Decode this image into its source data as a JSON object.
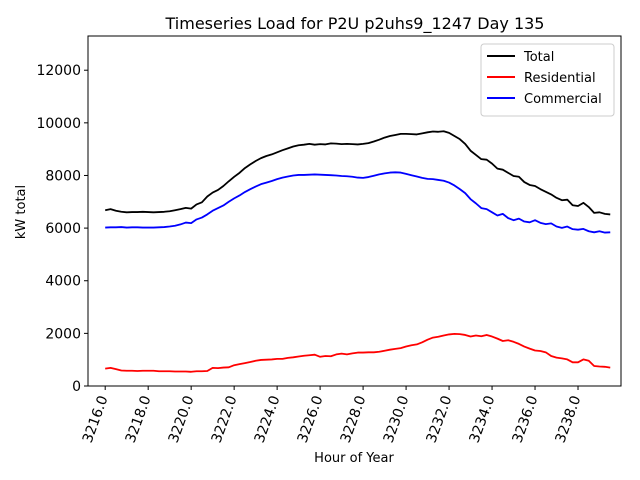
{
  "chart_data": {
    "type": "line",
    "title": "Timeseries Load for P2U p2uhs9_1247  Day 135",
    "xlabel": "Hour of Year",
    "ylabel": "kW total",
    "xlim": [
      3215.2,
      3240.0
    ],
    "ylim": [
      0,
      13300
    ],
    "xticks": [
      3216,
      3218,
      3220,
      3222,
      3224,
      3226,
      3228,
      3230,
      3232,
      3234,
      3236,
      3238
    ],
    "xtick_labels": [
      "3216.0",
      "3218.0",
      "3220.0",
      "3222.0",
      "3224.0",
      "3226.0",
      "3228.0",
      "3230.0",
      "3232.0",
      "3234.0",
      "3236.0",
      "3238.0"
    ],
    "yticks": [
      0,
      2000,
      4000,
      6000,
      8000,
      10000,
      12000
    ],
    "ytick_labels": [
      "0",
      "2000",
      "4000",
      "6000",
      "8000",
      "10000",
      "12000"
    ],
    "legend_position": "top-right",
    "x_start": 3216.0,
    "x_step": 0.25,
    "series": [
      {
        "name": "Total",
        "color": "#000000",
        "values": [
          6680,
          6720,
          6660,
          6620,
          6600,
          6610,
          6610,
          6620,
          6610,
          6600,
          6610,
          6620,
          6640,
          6680,
          6720,
          6770,
          6740,
          6900,
          6980,
          7200,
          7350,
          7450,
          7600,
          7780,
          7950,
          8100,
          8280,
          8420,
          8550,
          8660,
          8740,
          8800,
          8880,
          8960,
          9030,
          9100,
          9150,
          9170,
          9200,
          9170,
          9190,
          9180,
          9220,
          9210,
          9190,
          9200,
          9190,
          9180,
          9200,
          9230,
          9290,
          9360,
          9440,
          9500,
          9540,
          9580,
          9580,
          9570,
          9560,
          9600,
          9640,
          9670,
          9660,
          9680,
          9620,
          9500,
          9380,
          9200,
          8940,
          8780,
          8620,
          8600,
          8450,
          8260,
          8220,
          8100,
          7980,
          7950,
          7750,
          7640,
          7600,
          7480,
          7380,
          7280,
          7150,
          7060,
          7080,
          6870,
          6840,
          6960,
          6800,
          6580,
          6600,
          6540,
          6520
        ]
      },
      {
        "name": "Residential",
        "color": "#ff0000",
        "values": [
          660,
          690,
          640,
          590,
          580,
          580,
          570,
          580,
          580,
          580,
          560,
          560,
          560,
          550,
          550,
          550,
          540,
          560,
          560,
          570,
          690,
          680,
          700,
          710,
          790,
          830,
          870,
          910,
          960,
          990,
          1000,
          1010,
          1030,
          1030,
          1070,
          1090,
          1120,
          1150,
          1170,
          1190,
          1110,
          1140,
          1130,
          1200,
          1230,
          1200,
          1240,
          1270,
          1270,
          1280,
          1280,
          1300,
          1340,
          1380,
          1410,
          1440,
          1500,
          1550,
          1580,
          1660,
          1760,
          1840,
          1870,
          1920,
          1960,
          1980,
          1970,
          1940,
          1880,
          1920,
          1890,
          1940,
          1880,
          1800,
          1710,
          1740,
          1680,
          1600,
          1500,
          1420,
          1350,
          1330,
          1280,
          1140,
          1080,
          1050,
          1010,
          900,
          900,
          1010,
          960,
          760,
          740,
          730,
          700
        ]
      },
      {
        "name": "Commercial",
        "color": "#0000ff",
        "values": [
          6020,
          6030,
          6030,
          6040,
          6020,
          6030,
          6030,
          6020,
          6020,
          6020,
          6030,
          6040,
          6060,
          6090,
          6140,
          6210,
          6190,
          6330,
          6400,
          6520,
          6660,
          6760,
          6860,
          7000,
          7130,
          7240,
          7370,
          7480,
          7580,
          7670,
          7730,
          7790,
          7860,
          7920,
          7960,
          8000,
          8020,
          8020,
          8030,
          8040,
          8030,
          8020,
          8010,
          8000,
          7980,
          7970,
          7950,
          7920,
          7910,
          7940,
          7990,
          8040,
          8080,
          8110,
          8120,
          8110,
          8060,
          8010,
          7960,
          7910,
          7870,
          7860,
          7830,
          7800,
          7730,
          7620,
          7480,
          7330,
          7100,
          6940,
          6760,
          6720,
          6600,
          6480,
          6540,
          6380,
          6300,
          6360,
          6250,
          6220,
          6300,
          6200,
          6150,
          6180,
          6060,
          6010,
          6060,
          5960,
          5940,
          5970,
          5880,
          5840,
          5880,
          5830,
          5840
        ]
      }
    ]
  }
}
